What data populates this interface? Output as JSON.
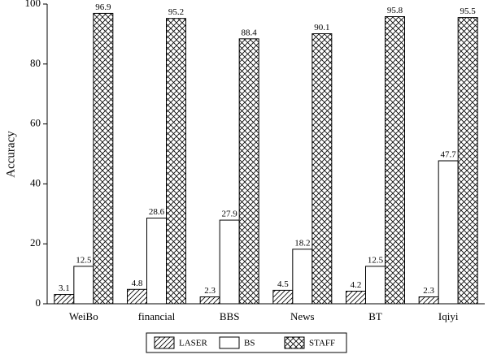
{
  "chart_data": {
    "type": "bar",
    "y_label": "Accuracy",
    "categories": [
      "WeiBo",
      "financial",
      "BBS",
      "News",
      "BT",
      "Iqiyi"
    ],
    "series": [
      {
        "name": "LASER",
        "color": "#ffffff",
        "pattern": "diagonal",
        "values": [
          3.1,
          4.8,
          2.3,
          4.5,
          4.2,
          2.3
        ]
      },
      {
        "name": "BS",
        "color": "#ffffff",
        "pattern": "none",
        "values": [
          12.5,
          28.6,
          27.9,
          18.2,
          12.5,
          47.7
        ]
      },
      {
        "name": "STAFF",
        "color": "#ffffff",
        "pattern": "cross",
        "values": [
          96.9,
          95.2,
          88.4,
          90.1,
          95.8,
          95.5
        ]
      }
    ],
    "ylim": [
      0,
      100
    ],
    "yticks": [
      0,
      20,
      40,
      60,
      80,
      100
    ],
    "legend": "bottom"
  }
}
